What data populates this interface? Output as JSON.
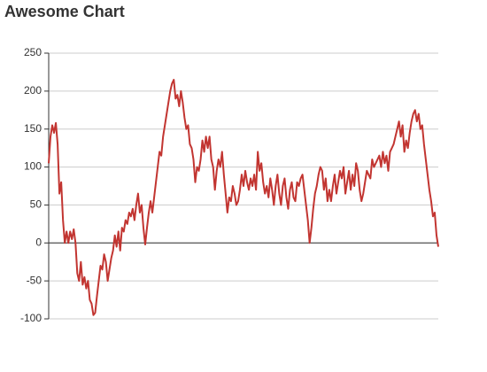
{
  "chart_data": {
    "type": "line",
    "title": "Awesome Chart",
    "color": "#c23531",
    "ylim": [
      -100,
      250
    ],
    "yticks": [
      -100,
      -50,
      0,
      50,
      100,
      150,
      200,
      250
    ],
    "grid": true,
    "values": [
      105,
      140,
      155,
      145,
      158,
      130,
      65,
      80,
      30,
      0,
      15,
      0,
      15,
      5,
      18,
      0,
      -40,
      -50,
      -25,
      -55,
      -45,
      -60,
      -50,
      -75,
      -80,
      -95,
      -92,
      -70,
      -50,
      -30,
      -35,
      -15,
      -25,
      -50,
      -35,
      -20,
      -10,
      10,
      -5,
      15,
      -10,
      20,
      15,
      30,
      25,
      40,
      35,
      45,
      30,
      50,
      65,
      40,
      50,
      20,
      -2,
      20,
      40,
      55,
      40,
      60,
      80,
      100,
      120,
      115,
      140,
      155,
      170,
      185,
      200,
      210,
      215,
      190,
      195,
      180,
      200,
      185,
      165,
      150,
      155,
      130,
      125,
      110,
      80,
      100,
      95,
      110,
      135,
      120,
      140,
      125,
      140,
      110,
      100,
      70,
      95,
      110,
      100,
      120,
      90,
      65,
      40,
      60,
      55,
      75,
      65,
      50,
      55,
      70,
      90,
      75,
      95,
      80,
      70,
      85,
      75,
      90,
      70,
      120,
      95,
      105,
      80,
      65,
      75,
      60,
      85,
      70,
      50,
      75,
      90,
      65,
      50,
      75,
      85,
      60,
      45,
      70,
      80,
      60,
      55,
      80,
      75,
      85,
      90,
      70,
      50,
      30,
      0,
      20,
      45,
      65,
      75,
      90,
      100,
      95,
      70,
      85,
      55,
      70,
      55,
      75,
      90,
      65,
      80,
      95,
      85,
      100,
      65,
      80,
      95,
      70,
      90,
      75,
      105,
      95,
      70,
      55,
      65,
      80,
      95,
      90,
      85,
      110,
      100,
      105,
      110,
      115,
      100,
      120,
      105,
      115,
      95,
      120,
      125,
      130,
      140,
      150,
      160,
      140,
      155,
      120,
      135,
      125,
      145,
      160,
      170,
      175,
      160,
      170,
      150,
      155,
      130,
      110,
      90,
      70,
      55,
      35,
      40,
      10,
      -5
    ]
  }
}
